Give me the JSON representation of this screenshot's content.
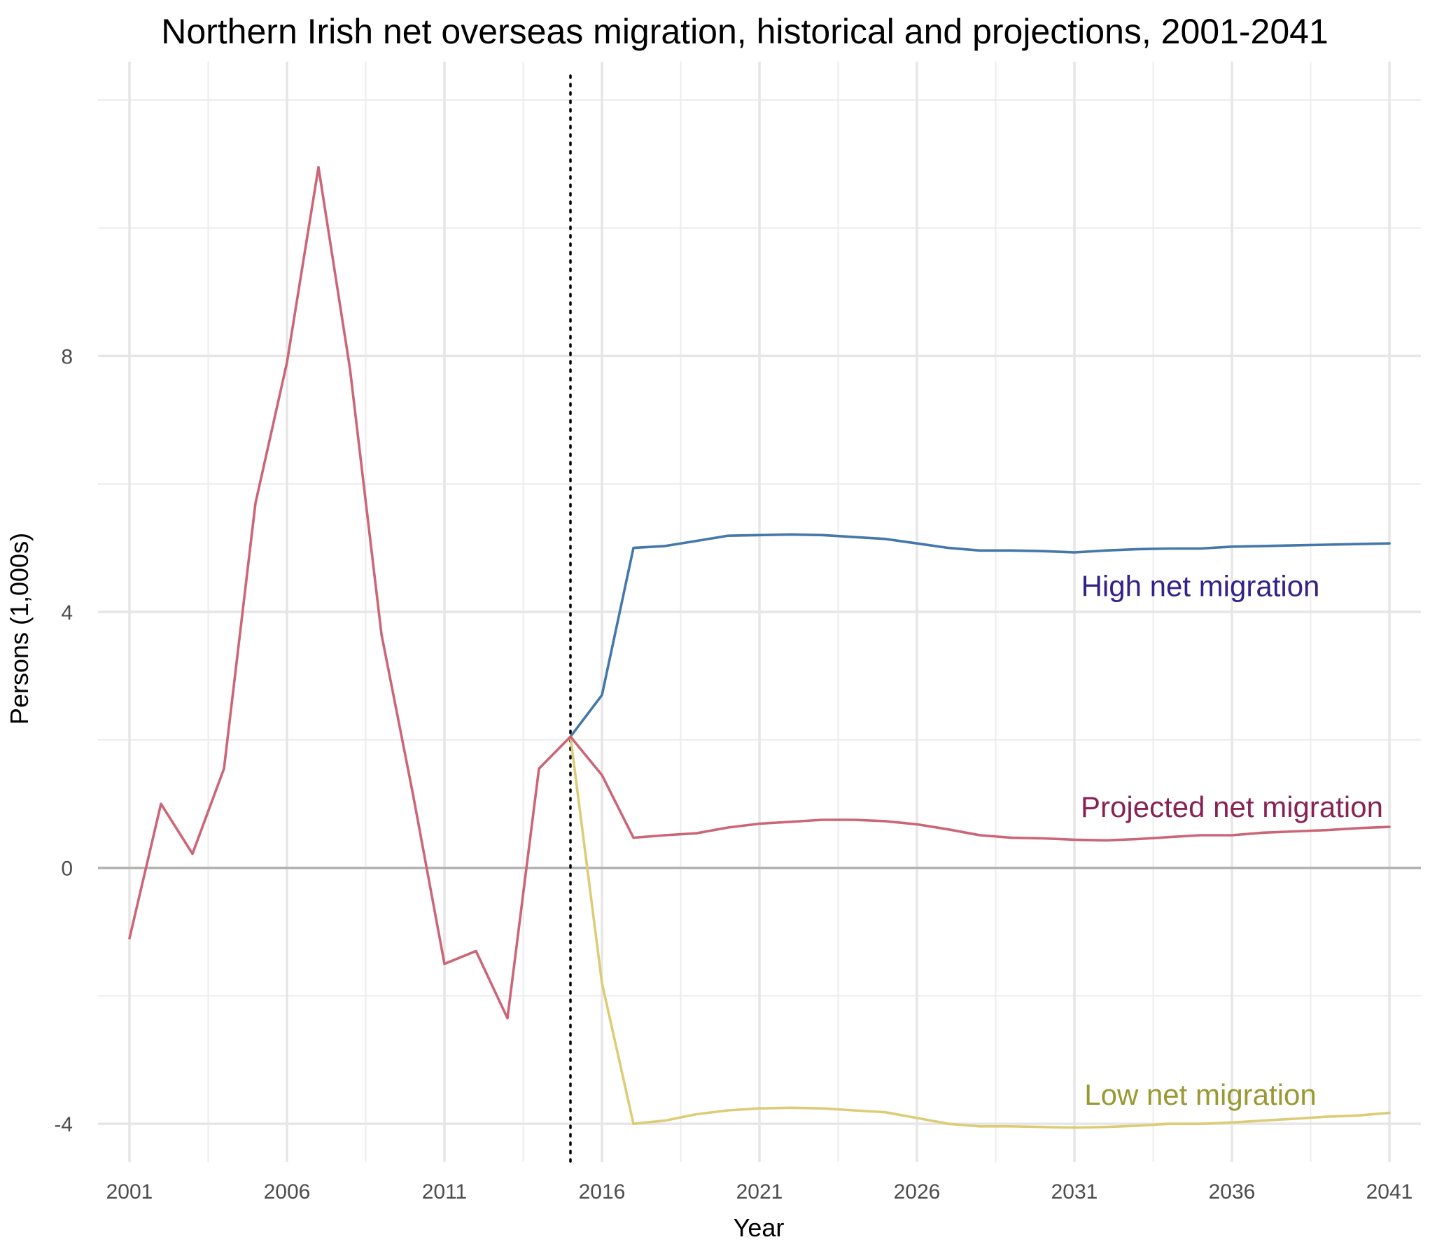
{
  "chart_data": {
    "type": "line",
    "title": "Northern Irish net overseas migration, historical and projections, 2001-2041",
    "xlabel": "Year",
    "ylabel": "Persons (1,000s)",
    "xlim": [
      2000,
      2042
    ],
    "ylim": [
      -4.6,
      12.6
    ],
    "x_ticks": [
      2001,
      2006,
      2011,
      2016,
      2021,
      2026,
      2031,
      2036,
      2041
    ],
    "y_ticks": [
      -4,
      0,
      4,
      8
    ],
    "grid": true,
    "reference_lines": {
      "zero_line_y": 0,
      "projection_start_x": 2015
    },
    "series": [
      {
        "name": "Projected net migration",
        "color": "#cc6677",
        "label_color": "#882255",
        "x": [
          2001,
          2002,
          2003,
          2004,
          2005,
          2006,
          2007,
          2008,
          2009,
          2010,
          2011,
          2012,
          2013,
          2014,
          2015,
          2016,
          2017,
          2018,
          2019,
          2020,
          2021,
          2022,
          2023,
          2024,
          2025,
          2026,
          2027,
          2028,
          2029,
          2030,
          2031,
          2032,
          2033,
          2034,
          2035,
          2036,
          2037,
          2038,
          2039,
          2040,
          2041
        ],
        "values": [
          -1.1,
          1.0,
          0.22,
          1.55,
          5.7,
          7.9,
          10.95,
          7.8,
          3.65,
          1.15,
          -1.5,
          -1.3,
          -2.35,
          1.55,
          2.05,
          1.45,
          0.47,
          0.51,
          0.54,
          0.63,
          0.69,
          0.72,
          0.75,
          0.75,
          0.73,
          0.68,
          0.6,
          0.51,
          0.47,
          0.46,
          0.44,
          0.43,
          0.45,
          0.48,
          0.51,
          0.51,
          0.55,
          0.57,
          0.59,
          0.62,
          0.64
        ]
      },
      {
        "name": "High net migration",
        "color": "#4477aa",
        "label_color": "#332288",
        "x": [
          2015,
          2016,
          2017,
          2018,
          2019,
          2020,
          2021,
          2022,
          2023,
          2024,
          2025,
          2026,
          2027,
          2028,
          2029,
          2030,
          2031,
          2032,
          2033,
          2034,
          2035,
          2036,
          2037,
          2038,
          2039,
          2040,
          2041
        ],
        "values": [
          2.05,
          2.7,
          5.0,
          5.03,
          5.11,
          5.19,
          5.2,
          5.21,
          5.2,
          5.17,
          5.14,
          5.07,
          5.0,
          4.96,
          4.96,
          4.95,
          4.93,
          4.96,
          4.98,
          4.99,
          4.99,
          5.02,
          5.03,
          5.04,
          5.05,
          5.06,
          5.07
        ]
      },
      {
        "name": "Low net migration",
        "color": "#ddcc77",
        "label_color": "#999933",
        "x": [
          2015,
          2016,
          2017,
          2018,
          2019,
          2020,
          2021,
          2022,
          2023,
          2024,
          2025,
          2026,
          2027,
          2028,
          2029,
          2030,
          2031,
          2032,
          2033,
          2034,
          2035,
          2036,
          2037,
          2038,
          2039,
          2040,
          2041
        ],
        "values": [
          2.05,
          -1.8,
          -4.0,
          -3.95,
          -3.85,
          -3.79,
          -3.76,
          -3.75,
          -3.76,
          -3.79,
          -3.82,
          -3.91,
          -4.0,
          -4.04,
          -4.04,
          -4.05,
          -4.06,
          -4.05,
          -4.03,
          -4.0,
          -4.0,
          -3.98,
          -3.95,
          -3.92,
          -3.89,
          -3.87,
          -3.83
        ]
      }
    ],
    "annotations": [
      {
        "text": "High net migration",
        "x": 2035.0,
        "y": 4.4,
        "anchor": "middle",
        "series": "High net migration"
      },
      {
        "text": "Projected net migration",
        "x": 2036.0,
        "y": 0.95,
        "anchor": "middle",
        "series": "Projected net migration"
      },
      {
        "text": "Low net migration",
        "x": 2035.0,
        "y": -3.55,
        "anchor": "middle",
        "series": "Low net migration"
      }
    ]
  }
}
